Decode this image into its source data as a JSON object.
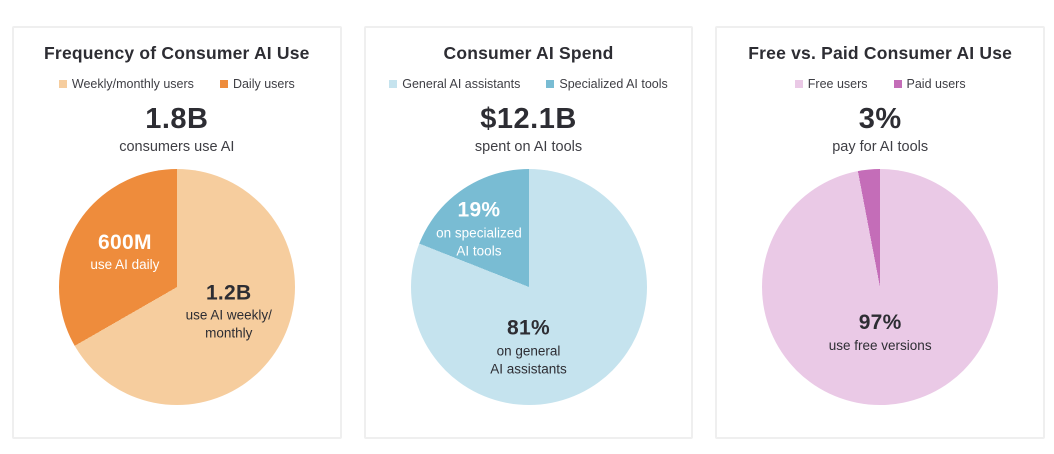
{
  "cards": [
    {
      "title": "Frequency of Consumer AI Use",
      "legend": [
        {
          "label": "Weekly/monthly users",
          "color": "#f6cd9e"
        },
        {
          "label": "Daily users",
          "color": "#ee8c3c"
        }
      ],
      "headline": "1.8B",
      "headline_caption": "consumers use AI",
      "slice_labels": [
        {
          "value": "600M",
          "lines": [
            "use AI daily"
          ]
        },
        {
          "value": "1.2B",
          "lines": [
            "use AI weekly/",
            "monthly"
          ]
        }
      ]
    },
    {
      "title": "Consumer AI Spend",
      "legend": [
        {
          "label": "General AI assistants",
          "color": "#c5e3ee"
        },
        {
          "label": "Specialized AI tools",
          "color": "#79bcd3"
        }
      ],
      "headline": "$12.1B",
      "headline_caption": "spent on AI tools",
      "slice_labels": [
        {
          "value": "19%",
          "lines": [
            "on specialized",
            "AI tools"
          ]
        },
        {
          "value": "81%",
          "lines": [
            "on general",
            "AI assistants"
          ]
        }
      ]
    },
    {
      "title": "Free vs. Paid Consumer AI Use",
      "legend": [
        {
          "label": "Free users",
          "color": "#eac9e6"
        },
        {
          "label": "Paid users",
          "color": "#c46db8"
        }
      ],
      "headline": "3%",
      "headline_caption": "pay for AI tools",
      "slice_labels": [
        {
          "value": "97%",
          "lines": [
            "use free versions"
          ]
        }
      ]
    }
  ],
  "chart_data": [
    {
      "type": "pie",
      "title": "Frequency of Consumer AI Use",
      "headline": "1.8B consumers use AI",
      "legend": [
        "Weekly/monthly users",
        "Daily users"
      ],
      "legend_position": "top",
      "direction": "clockwise",
      "start_angle_deg": 0,
      "slices": [
        {
          "label": "Weekly/monthly users",
          "annotation": "1.2B use AI weekly/monthly",
          "value": 1.2,
          "unit": "billion users",
          "share_pct": 66.7,
          "color": "#f6cd9e"
        },
        {
          "label": "Daily users",
          "annotation": "600M use AI daily",
          "value": 0.6,
          "unit": "billion users",
          "share_pct": 33.3,
          "color": "#ee8c3c"
        }
      ]
    },
    {
      "type": "pie",
      "title": "Consumer AI Spend",
      "headline": "$12.1B spent on AI tools",
      "legend": [
        "General AI assistants",
        "Specialized AI tools"
      ],
      "legend_position": "top",
      "direction": "clockwise",
      "start_angle_deg": 0,
      "slices": [
        {
          "label": "General AI assistants",
          "annotation": "81% on general AI assistants",
          "share_pct": 81,
          "color": "#c5e3ee"
        },
        {
          "label": "Specialized AI tools",
          "annotation": "19% on specialized AI tools",
          "share_pct": 19,
          "color": "#79bcd3"
        }
      ]
    },
    {
      "type": "pie",
      "title": "Free vs. Paid Consumer AI Use",
      "headline": "3% pay for AI tools",
      "legend": [
        "Free users",
        "Paid users"
      ],
      "legend_position": "top",
      "direction": "clockwise",
      "start_angle_deg": 0,
      "slices": [
        {
          "label": "Free users",
          "annotation": "97% use free versions",
          "share_pct": 97,
          "color": "#eac9e6"
        },
        {
          "label": "Paid users",
          "share_pct": 3,
          "color": "#c46db8"
        }
      ]
    }
  ]
}
